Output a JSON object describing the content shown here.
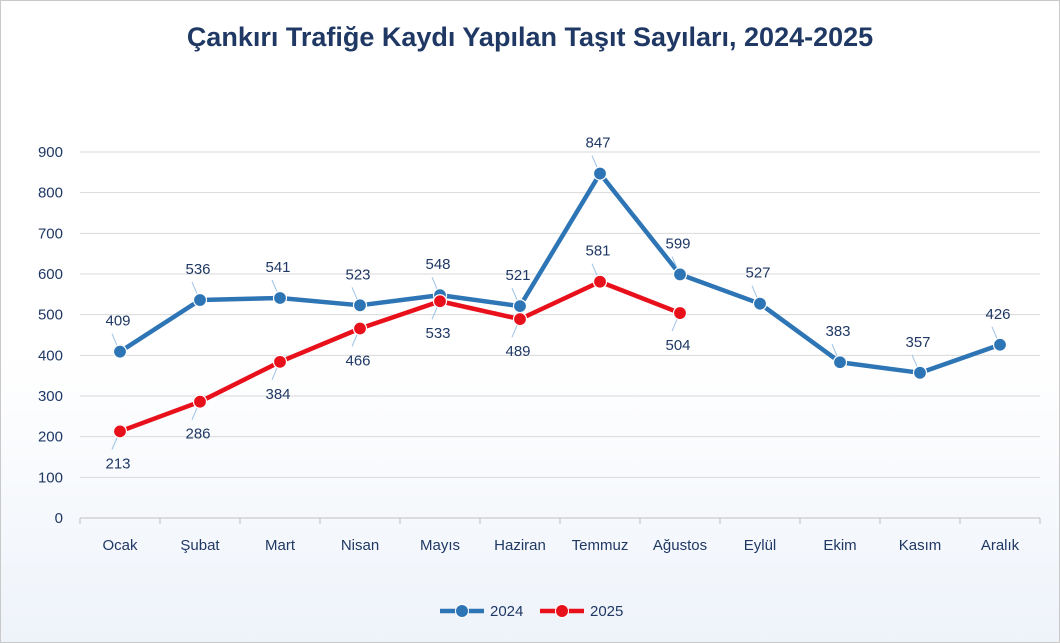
{
  "chart_data": {
    "type": "line",
    "title": "Çankırı Trafiğe Kaydı Yapılan Taşıt Sayıları, 2024-2025",
    "categories": [
      "Ocak",
      "Şubat",
      "Mart",
      "Nisan",
      "Mayıs",
      "Haziran",
      "Temmuz",
      "Ağustos",
      "Eylül",
      "Ekim",
      "Kasım",
      "Aralık"
    ],
    "series": [
      {
        "name": "2024",
        "color": "#2e75b6",
        "values": [
          409,
          536,
          541,
          523,
          548,
          521,
          847,
          599,
          527,
          383,
          357,
          426
        ]
      },
      {
        "name": "2025",
        "color": "#e8101a",
        "values": [
          213,
          286,
          384,
          466,
          533,
          489,
          581,
          504,
          null,
          null,
          null,
          null
        ]
      }
    ],
    "ylim": [
      0,
      900
    ],
    "yticks": [
      0,
      100,
      200,
      300,
      400,
      500,
      600,
      700,
      800,
      900
    ],
    "grid": true,
    "legend": "bottom-center",
    "xlabel": "",
    "ylabel": ""
  }
}
